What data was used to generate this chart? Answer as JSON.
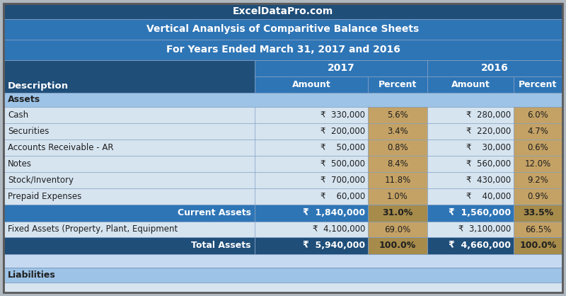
{
  "title1": "ExcelDataPro.com",
  "title2": "Vertical Ananlysis of Comparitive Balance Sheets",
  "title3": "For Years Ended March 31, 2017 and 2016",
  "section_assets": "Assets",
  "section_liabilities": "Liabilities",
  "rows": [
    [
      "Cash",
      "₹  330,000",
      "5.6%",
      "₹  280,000",
      "6.0%"
    ],
    [
      "Securities",
      "₹  200,000",
      "3.4%",
      "₹  220,000",
      "4.7%"
    ],
    [
      "Accounts Receivable - AR",
      "₹    50,000",
      "0.8%",
      "₹    30,000",
      "0.6%"
    ],
    [
      "Notes",
      "₹  500,000",
      "8.4%",
      "₹  560,000",
      "12.0%"
    ],
    [
      "Stock/Inventory",
      "₹  700,000",
      "11.8%",
      "₹  430,000",
      "9.2%"
    ],
    [
      "Prepaid Expenses",
      "₹    60,000",
      "1.0%",
      "₹    40,000",
      "0.9%"
    ]
  ],
  "current_assets_row": [
    "Current Assets",
    "₹  1,840,000",
    "31.0%",
    "₹  1,560,000",
    "33.5%"
  ],
  "fixed_assets_row": [
    "Fixed Assets (Property, Plant, Equipment",
    "₹  4,100,000",
    "69.0%",
    "₹  3,100,000",
    "66.5%"
  ],
  "total_assets_row": [
    "Total Assets",
    "₹  5,940,000",
    "100.0%",
    "₹  4,660,000",
    "100.0%"
  ],
  "colors": {
    "header_dark_blue": "#1F4E79",
    "header_mid_blue": "#2E75B6",
    "col_header_blue": "#2E75B6",
    "desc_header_blue": "#1F4E79",
    "assets_blue": "#9DC3E6",
    "row_light_blue": "#D6E4F0",
    "subtotal_blue": "#2E75B6",
    "percent_tan": "#C4A265",
    "percent_tan_bold": "#A68B4A",
    "total_blue": "#1F4E79",
    "liabilities_blue": "#9DC3E6",
    "blank_blue": "#C5D9F1",
    "bottom_strip": "#D6E4F0",
    "text_white": "#FFFFFF",
    "text_dark": "#1F1F1F",
    "border_outer": "#5B5B5B",
    "border_inner": "#7A9BBF"
  }
}
